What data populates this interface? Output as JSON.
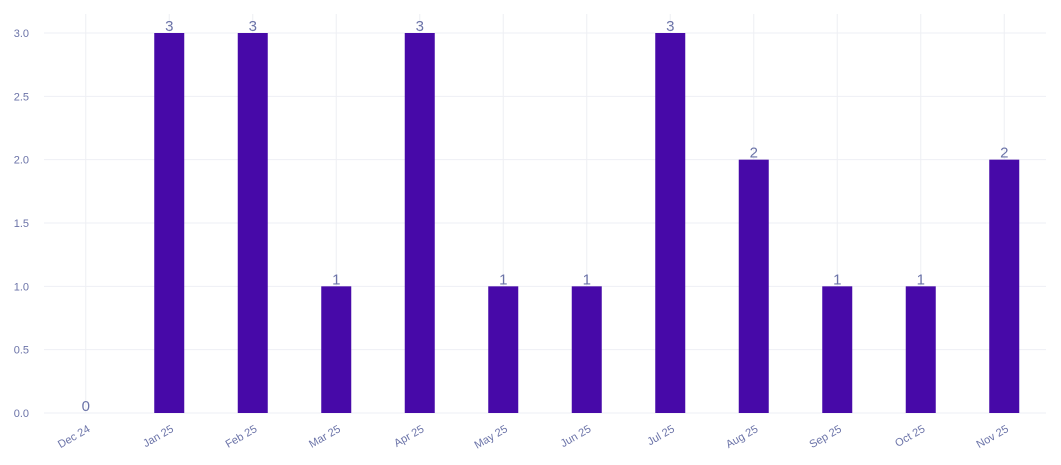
{
  "chart_data": {
    "type": "bar",
    "categories": [
      "Dec 24",
      "Jan 25",
      "Feb 25",
      "Mar 25",
      "Apr 25",
      "May 25",
      "Jun 25",
      "Jul 25",
      "Aug 25",
      "Sep 25",
      "Oct 25",
      "Nov 25"
    ],
    "values": [
      0,
      3,
      3,
      1,
      3,
      1,
      1,
      3,
      2,
      1,
      1,
      2
    ],
    "data_labels": [
      "0",
      "3",
      "3",
      "1",
      "3",
      "1",
      "1",
      "3",
      "2",
      "1",
      "1",
      "2"
    ],
    "y_ticks": [
      0,
      0.5,
      1,
      1.5,
      2,
      2.5,
      3
    ],
    "y_tick_labels": [
      "0.0",
      "0.5",
      "1.0",
      "1.5",
      "2.0",
      "2.5",
      "3.0"
    ],
    "ylim": [
      0,
      3.15
    ],
    "grid": true,
    "legend": "none",
    "x_tick_rotation_deg": -30,
    "colors": {
      "bar": "#4709a8",
      "text": "#6b73a8",
      "grid": "#eeeff4"
    }
  }
}
